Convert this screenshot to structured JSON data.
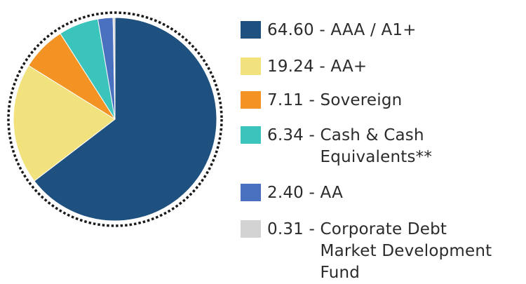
{
  "chart_data": {
    "type": "pie",
    "title": "",
    "slices": [
      {
        "value": 64.6,
        "label": "AAA / A1+",
        "color": "#1e5180"
      },
      {
        "value": 19.24,
        "label": "AA+",
        "color": "#f2e27e"
      },
      {
        "value": 7.11,
        "label": "Sovereign",
        "color": "#f29324"
      },
      {
        "value": 6.34,
        "label": "Cash & Cash\nEquivalents**",
        "color": "#3bc4bc"
      },
      {
        "value": 2.4,
        "label": "AA",
        "color": "#4971bf"
      },
      {
        "value": 0.31,
        "label": "Corporate Debt\nMarket Development\nFund",
        "color": "#d3d3d3"
      }
    ],
    "value_labels": [
      "64.60",
      "19.24",
      "7.11",
      "6.34",
      "2.40",
      "0.31"
    ],
    "separator": " - ",
    "border": "dotted-circle",
    "legend_position": "right"
  }
}
